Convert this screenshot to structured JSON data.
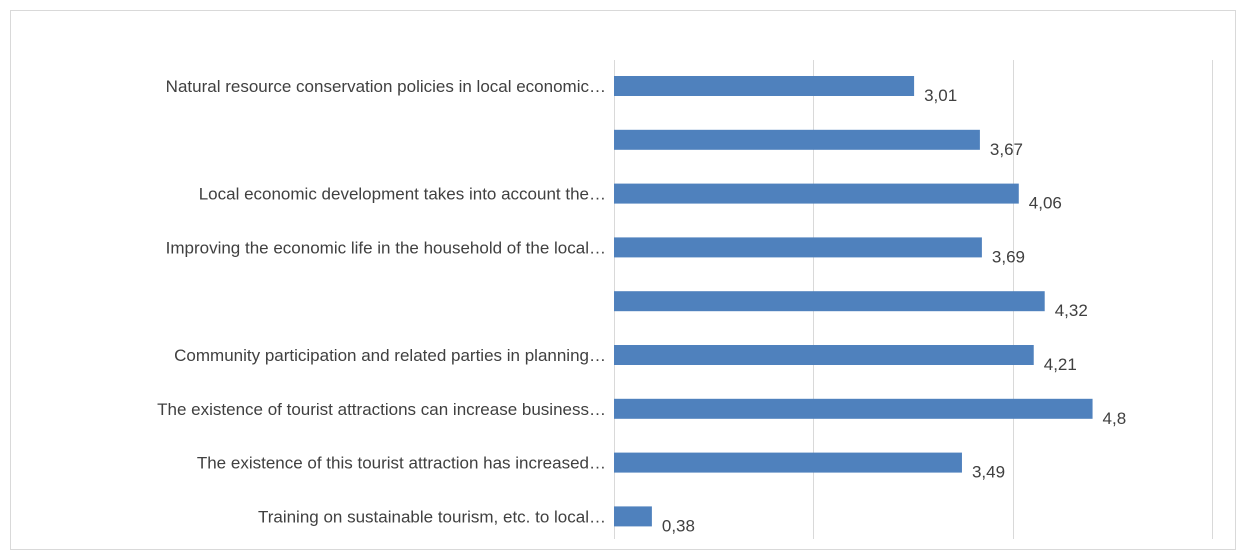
{
  "chart_data": {
    "type": "bar",
    "orientation": "horizontal",
    "categories": [
      "Natural resource conservation policies in local economic…",
      "",
      "Local economic development takes into account the…",
      "Improving the economic life in the household of the local…",
      "",
      "Community participation and related parties in planning…",
      "The existence of tourist attractions can increase business…",
      "The existence of this tourist attraction has increased…",
      "Training on sustainable tourism, etc. to local…"
    ],
    "values": [
      3.01,
      3.67,
      4.06,
      3.69,
      4.32,
      4.21,
      4.8,
      3.49,
      0.38
    ],
    "value_labels": [
      "3,01",
      "3,67",
      "4,06",
      "3,69",
      "4,32",
      "4,21",
      "4,8",
      "3,49",
      "0,38"
    ],
    "title": "",
    "xlabel": "",
    "ylabel": "",
    "xlim": [
      0,
      6
    ],
    "gridlines": [
      0,
      2,
      4,
      6
    ],
    "grid": true,
    "legend": "none",
    "bar_color": "#4f81bd",
    "gridline_color": "#d9d9d9",
    "text_color": "#404040"
  }
}
